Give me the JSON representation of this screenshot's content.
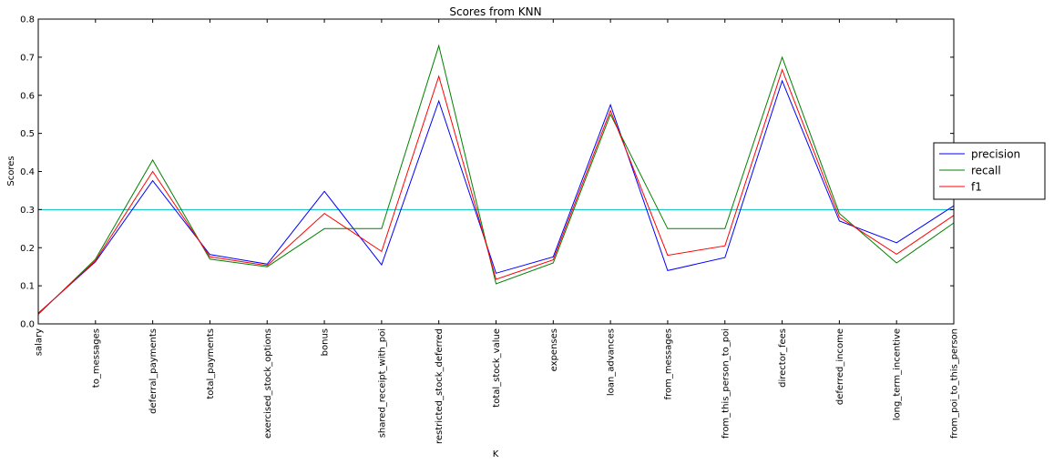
{
  "chart_data": {
    "type": "line",
    "title": "Scores from KNN",
    "xlabel": "K",
    "ylabel": "Scores",
    "ylim": [
      0.0,
      0.8
    ],
    "yticks": [
      "0.0",
      "0.1",
      "0.2",
      "0.3",
      "0.4",
      "0.5",
      "0.6",
      "0.7",
      "0.8"
    ],
    "grid": false,
    "legend_position": "right-center",
    "categories": [
      "salary",
      "to_messages",
      "deferral_payments",
      "total_payments",
      "exercised_stock_options",
      "bonus",
      "shared_receipt_with_poi",
      "restricted_stock_deferred",
      "total_stock_value",
      "expenses",
      "loan_advances",
      "from_messages",
      "from_this_person_to_poi",
      "director_fees",
      "deferred_income",
      "long_term_incentive",
      "from_poi_to_this_person"
    ],
    "series": [
      {
        "name": "precision",
        "color": "#0000ff",
        "values": [
          0.028,
          0.163,
          0.376,
          0.182,
          0.157,
          0.348,
          0.155,
          0.585,
          0.133,
          0.176,
          0.575,
          0.14,
          0.174,
          0.638,
          0.27,
          0.213,
          0.31
        ]
      },
      {
        "name": "recall",
        "color": "#008000",
        "values": [
          0.025,
          0.17,
          0.43,
          0.17,
          0.15,
          0.25,
          0.25,
          0.73,
          0.105,
          0.16,
          0.55,
          0.25,
          0.25,
          0.7,
          0.29,
          0.16,
          0.265
        ]
      },
      {
        "name": "f1",
        "color": "#ff0000",
        "values": [
          0.027,
          0.166,
          0.4,
          0.176,
          0.153,
          0.29,
          0.19,
          0.65,
          0.117,
          0.168,
          0.56,
          0.18,
          0.205,
          0.667,
          0.28,
          0.183,
          0.285
        ]
      }
    ],
    "reference_line": {
      "y": 0.3,
      "color": "#00bfbf"
    }
  }
}
